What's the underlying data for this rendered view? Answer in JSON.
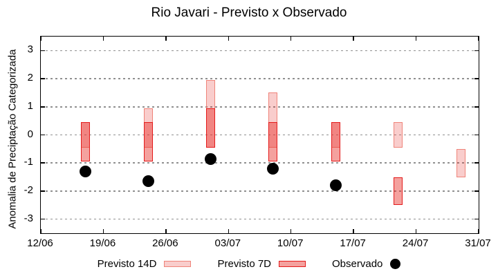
{
  "chart_data": {
    "type": "candlestick",
    "title": "Rio Javari - Previsto x Observado",
    "ylabel": "Anomalia de Preciptação Categorizada",
    "xlabel": "",
    "ylim": [
      -3.5,
      3.5
    ],
    "x_domain_days": [
      0,
      49
    ],
    "grid": "horizontal dotted gray at integer y values",
    "legend_position": "bottom-center",
    "x_ticks": [
      {
        "label": "12/06",
        "day": 0
      },
      {
        "label": "19/06",
        "day": 7
      },
      {
        "label": "26/06",
        "day": 14
      },
      {
        "label": "03/07",
        "day": 21
      },
      {
        "label": "10/07",
        "day": 28
      },
      {
        "label": "17/07",
        "day": 35
      },
      {
        "label": "24/07",
        "day": 42
      },
      {
        "label": "31/07",
        "day": 49
      }
    ],
    "y_ticks": [
      3,
      2,
      1,
      0,
      -1,
      -2,
      -3
    ],
    "series": [
      {
        "name": "Previsto 14D",
        "type": "box",
        "points": [
          {
            "date": "17/06",
            "day": 5,
            "low": -0.45,
            "high": 0.45
          },
          {
            "date": "24/06",
            "day": 12,
            "low": -0.45,
            "high": 0.95
          },
          {
            "date": "01/07",
            "day": 19,
            "low": -0.45,
            "high": 1.95
          },
          {
            "date": "08/07",
            "day": 26,
            "low": -0.45,
            "high": 1.5
          },
          {
            "date": "15/07",
            "day": 33,
            "low": -0.45,
            "high": 0.45
          },
          {
            "date": "22/07",
            "day": 40,
            "low": -0.45,
            "high": 0.45
          },
          {
            "date": "29/07",
            "day": 47,
            "low": -1.5,
            "high": -0.5
          }
        ]
      },
      {
        "name": "Previsto 7D",
        "type": "box",
        "points": [
          {
            "date": "17/06",
            "day": 5,
            "low": -0.95,
            "high": 0.45
          },
          {
            "date": "24/06",
            "day": 12,
            "low": -0.95,
            "high": 0.45
          },
          {
            "date": "01/07",
            "day": 19,
            "low": -0.45,
            "high": 0.95
          },
          {
            "date": "08/07",
            "day": 26,
            "low": -0.95,
            "high": 0.45
          },
          {
            "date": "15/07",
            "day": 33,
            "low": -0.95,
            "high": 0.45
          },
          {
            "date": "22/07",
            "day": 40,
            "low": -2.5,
            "high": -1.5
          }
        ]
      },
      {
        "name": "Observado",
        "type": "scatter",
        "points": [
          {
            "date": "17/06",
            "day": 5,
            "value": -1.3
          },
          {
            "date": "24/06",
            "day": 12,
            "value": -1.65
          },
          {
            "date": "01/07",
            "day": 19,
            "value": -0.85
          },
          {
            "date": "08/07",
            "day": 26,
            "value": -1.2
          },
          {
            "date": "15/07",
            "day": 33,
            "value": -1.8
          }
        ]
      }
    ],
    "legend": [
      {
        "label": "Previsto 14D",
        "swatch": "box-light"
      },
      {
        "label": "Previsto 7D",
        "swatch": "box-dark"
      },
      {
        "label": "Observado",
        "swatch": "dot"
      }
    ],
    "colors": {
      "forecast_base": "#e62e28",
      "box14_fill": "rgba(230,46,40,0.24)",
      "box14_border": "#ef8379",
      "box7_fill": "rgba(230,46,40,0.45)",
      "box7_border": "#e41a1a",
      "observed": "#000000",
      "grid": "#8f8f8f",
      "axis": "#000000"
    }
  }
}
